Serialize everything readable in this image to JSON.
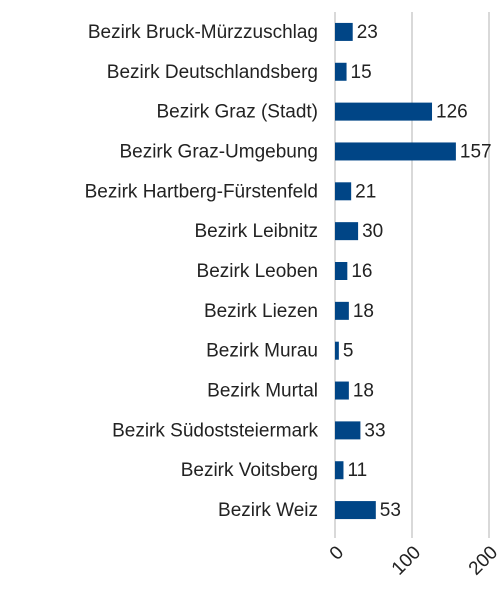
{
  "chart_data": {
    "type": "bar",
    "orientation": "horizontal",
    "categories": [
      "Bezirk Bruck-Mürzzuschlag",
      "Bezirk Deutschlandsberg",
      "Bezirk Graz (Stadt)",
      "Bezirk Graz-Umgebung",
      "Bezirk Hartberg-Fürstenfeld",
      "Bezirk Leibnitz",
      "Bezirk Leoben",
      "Bezirk Liezen",
      "Bezirk Murau",
      "Bezirk Murtal",
      "Bezirk Südoststeiermark",
      "Bezirk Voitsberg",
      "Bezirk Weiz"
    ],
    "values": [
      23,
      15,
      126,
      157,
      21,
      30,
      16,
      18,
      5,
      18,
      33,
      11,
      53
    ],
    "color": "#004586",
    "xlim": [
      0,
      200
    ],
    "xticks": [
      0,
      100,
      200
    ],
    "grid": true
  }
}
